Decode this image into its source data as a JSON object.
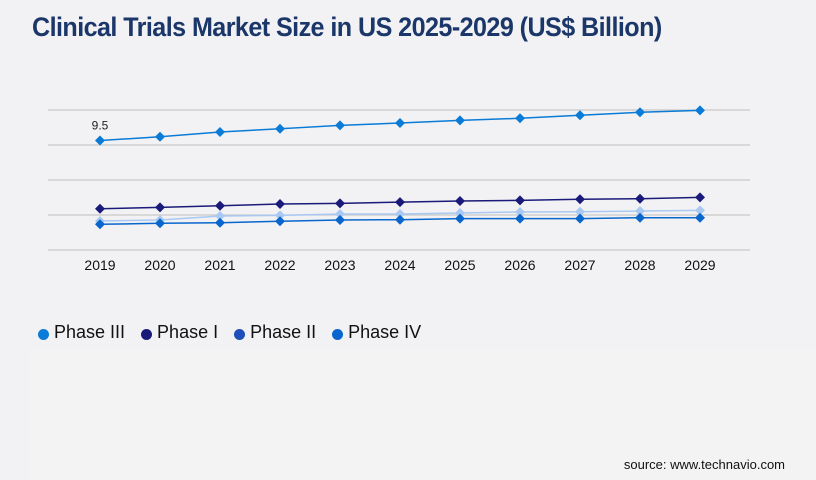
{
  "title": "Clinical Trials Market Size in US 2025-2029 (US$ Billion)",
  "source": "source: www.technavio.com",
  "chart_data": {
    "type": "line",
    "title": "Clinical Trials Market Size in US 2025-2029 (US$ Billion)",
    "xlabel": "",
    "ylabel": "",
    "x": [
      "2019",
      "2020",
      "2021",
      "2022",
      "2023",
      "2024",
      "2025",
      "2026",
      "2027",
      "2028",
      "2029"
    ],
    "ylim": [
      0,
      12.15
    ],
    "y_gridlines": 4,
    "grid": true,
    "y_tick_labels_visible": false,
    "legend_position": "bottom-left",
    "series": [
      {
        "name": "Phase III",
        "color": "#0a7bd6",
        "legend_color": "#0a7bd6",
        "values": [
          9.5,
          9.83,
          10.24,
          10.52,
          10.82,
          11.02,
          11.25,
          11.43,
          11.69,
          11.95,
          12.12
        ]
      },
      {
        "name": "Phase I",
        "color": "#1a1a7a",
        "legend_color": "#1a1a7a",
        "values": [
          3.58,
          3.7,
          3.84,
          3.99,
          4.05,
          4.16,
          4.25,
          4.31,
          4.4,
          4.45,
          4.57
        ]
      },
      {
        "name": "Phase II",
        "color": "#a9c9f3",
        "legend_color": "#1f4fb8",
        "values": [
          2.52,
          2.6,
          2.95,
          3.01,
          3.12,
          3.12,
          3.21,
          3.3,
          3.32,
          3.38,
          3.44
        ]
      },
      {
        "name": "Phase IV",
        "color": "#0866cc",
        "legend_color": "#0866cc",
        "values": [
          2.23,
          2.32,
          2.37,
          2.49,
          2.6,
          2.63,
          2.72,
          2.72,
          2.72,
          2.8,
          2.8
        ]
      }
    ],
    "annotations": [
      {
        "series": "Phase III",
        "x": "2019",
        "text": "9.5"
      }
    ]
  }
}
